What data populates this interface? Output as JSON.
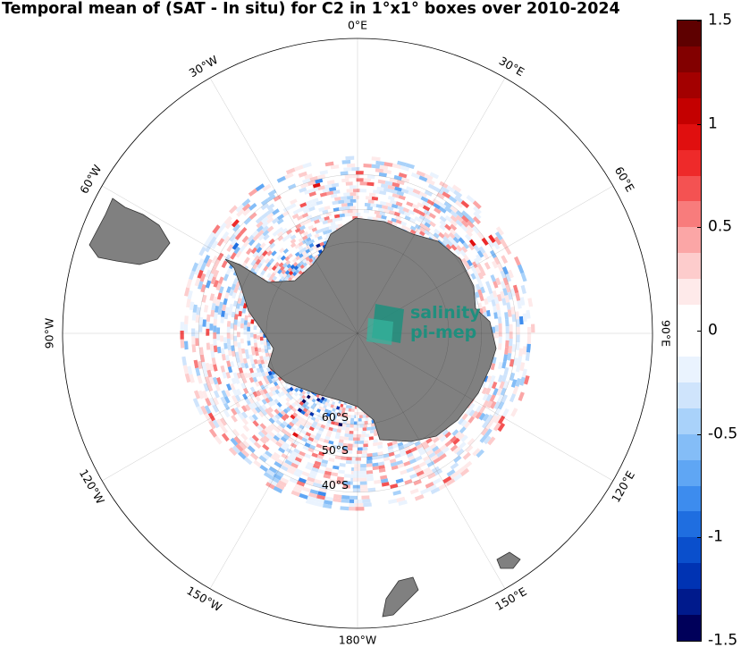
{
  "title": "Temporal mean of (SAT - In situ) for C2 in 1°x1° boxes over 2010-2024",
  "colorbar": {
    "min": -1.5,
    "max": 1.5,
    "ticks": [
      {
        "value": 1.5,
        "label": "1.5"
      },
      {
        "value": 1,
        "label": "1"
      },
      {
        "value": 0.5,
        "label": "0.5"
      },
      {
        "value": 0,
        "label": "0"
      },
      {
        "value": -0.5,
        "label": "-0.5"
      },
      {
        "value": -1,
        "label": "-1"
      },
      {
        "value": -1.5,
        "label": "-1.5"
      }
    ],
    "colors": [
      "#00005a",
      "#001a8c",
      "#0033b3",
      "#0a4fcc",
      "#1f6ee0",
      "#3d8cee",
      "#5fa6f4",
      "#84bdf7",
      "#a9d2fa",
      "#cfe4fc",
      "#eaf3fe",
      "#ffffff",
      "#ffffff",
      "#feeaea",
      "#fdcccc",
      "#fba6a6",
      "#f87c7c",
      "#f45252",
      "#ee2a2a",
      "#e00f0f",
      "#c40000",
      "#a30000",
      "#820000",
      "#5e0000"
    ]
  },
  "map": {
    "projection": "south-polar-stereographic",
    "longitude_labels": [
      {
        "lon": 0,
        "label": "0°E"
      },
      {
        "lon": 30,
        "label": "30°E"
      },
      {
        "lon": 60,
        "label": "60°E"
      },
      {
        "lon": 90,
        "label": "90°E"
      },
      {
        "lon": 120,
        "label": "120°E"
      },
      {
        "lon": 150,
        "label": "150°E"
      },
      {
        "lon": 180,
        "label": "180°W"
      },
      {
        "lon": -150,
        "label": "150°W"
      },
      {
        "lon": -120,
        "label": "120°W"
      },
      {
        "lon": -90,
        "label": "90°W"
      },
      {
        "lon": -60,
        "label": "60°W"
      },
      {
        "lon": -30,
        "label": "30°W"
      }
    ],
    "latitude_labels": [
      {
        "lat": -60,
        "label": "60°S"
      },
      {
        "lat": -50,
        "label": "50°S"
      },
      {
        "lat": -40,
        "label": "40°S"
      }
    ],
    "land_color": "#808080",
    "data_domain_lat": [
      -68,
      -35
    ]
  },
  "logo": {
    "line1": "salinity",
    "line2": "pi-mep"
  }
}
